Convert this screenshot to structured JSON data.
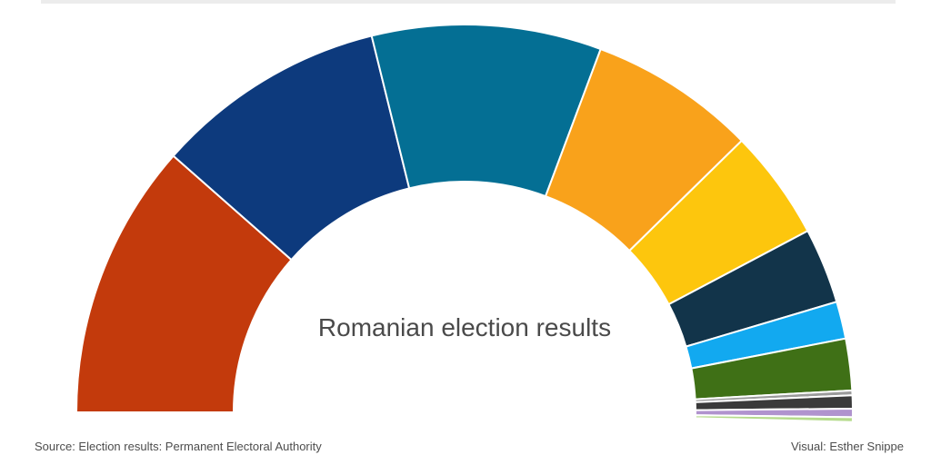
{
  "divider": {
    "color": "#ececec"
  },
  "chart_data": {
    "type": "half-donut",
    "title": "Romanian election results",
    "labels_shown": false,
    "legend": "none",
    "start_angle_deg": 180,
    "span_deg_per_100pct": 180,
    "inner_radius_ratio": 0.595,
    "stroke_color": "#ffffff",
    "segments": [
      {
        "name": "red-segment",
        "share_pct": 23.0,
        "color": "#c33a0c"
      },
      {
        "name": "navy-segment",
        "share_pct": 19.3,
        "color": "#0d3a7d"
      },
      {
        "name": "teal-segment",
        "share_pct": 19.1,
        "color": "#046f94"
      },
      {
        "name": "orange-segment",
        "share_pct": 13.9,
        "color": "#f9a21b"
      },
      {
        "name": "yellow-segment",
        "share_pct": 9.2,
        "color": "#fdc60d"
      },
      {
        "name": "dark-navy-segment",
        "share_pct": 6.3,
        "color": "#12344a"
      },
      {
        "name": "light-blue-segment",
        "share_pct": 3.1,
        "color": "#12a9f0"
      },
      {
        "name": "green-segment",
        "share_pct": 4.3,
        "color": "#3f7016"
      },
      {
        "name": "gray-segment",
        "share_pct": 0.4,
        "color": "#9b9b9b"
      },
      {
        "name": "charcoal-segment",
        "share_pct": 1.1,
        "color": "#3a3a3a"
      },
      {
        "name": "purple-segment",
        "share_pct": 0.7,
        "color": "#b093ce"
      },
      {
        "name": "light-green-segment",
        "share_pct": 0.4,
        "color": "#b5db8c"
      }
    ]
  },
  "footer": {
    "source": "Source: Election results: Permanent Electoral Authority",
    "credit": "Visual: Esther Snippe"
  }
}
